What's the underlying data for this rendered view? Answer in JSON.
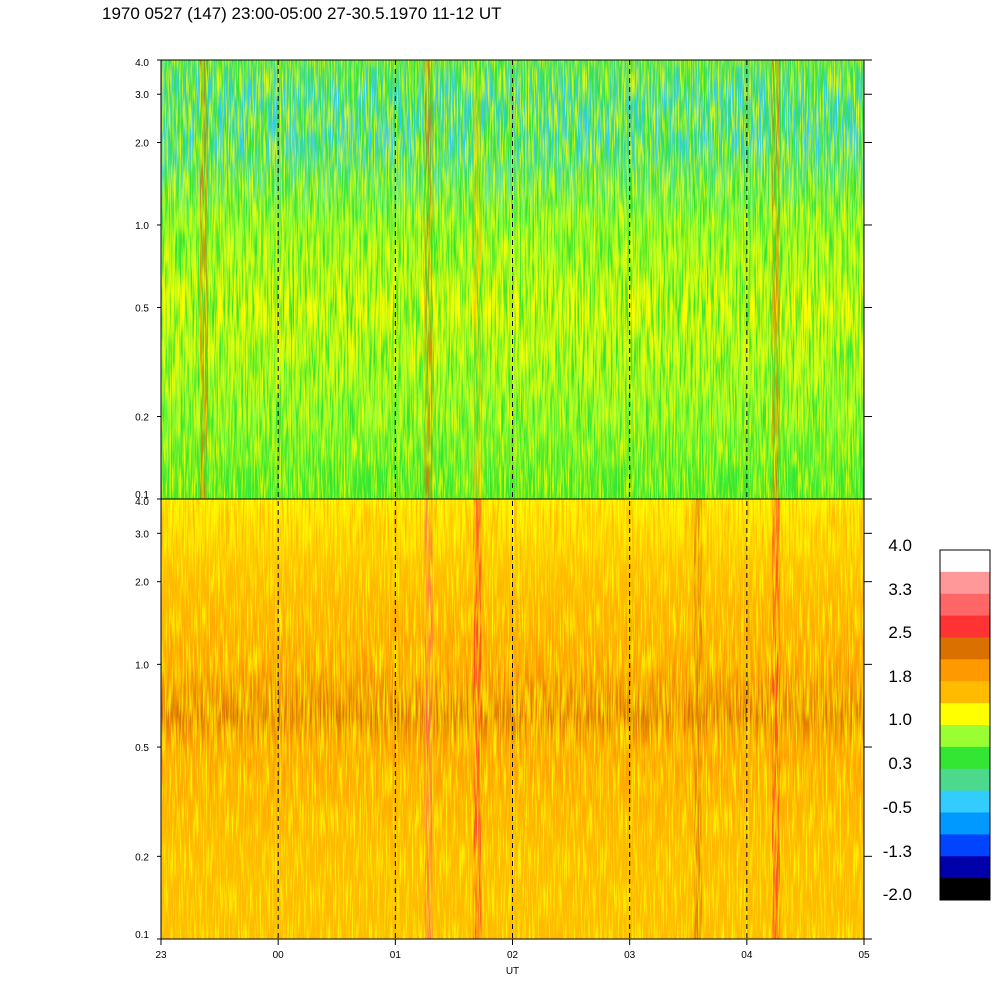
{
  "title": "1970 0527 (147) 23:00-05:00 27-30.5.1970  11-12 UT",
  "chart_data": [
    {
      "type": "heatmap",
      "panel": "upper",
      "x_ticks": [
        "23",
        "00",
        "01",
        "02",
        "03",
        "04",
        "05"
      ],
      "y_ticks": [
        "0.1",
        "0.2",
        "0.5",
        "1.0",
        "2.0",
        "3.0",
        "4.0"
      ],
      "y_scale": "log",
      "ylim": [
        0.1,
        4.0
      ],
      "value_profile": [
        {
          "y": 0.1,
          "value": 0.5
        },
        {
          "y": 0.2,
          "value": 0.8
        },
        {
          "y": 0.5,
          "value": 1.1
        },
        {
          "y": 1.0,
          "value": 1.0
        },
        {
          "y": 2.0,
          "value": -0.4
        },
        {
          "y": 3.0,
          "value": -0.2
        },
        {
          "y": 4.0,
          "value": 0.2
        }
      ],
      "vertical_features": [
        {
          "x": "01:17",
          "value": 2.2
        },
        {
          "x": "01:42",
          "value": 1.6
        },
        {
          "x": "23:22",
          "value": 2.2
        },
        {
          "x": "04:15",
          "value": 2.2
        }
      ]
    },
    {
      "type": "heatmap",
      "panel": "lower",
      "x_ticks": [
        "23",
        "00",
        "01",
        "02",
        "03",
        "04",
        "05"
      ],
      "xlabel": "UT",
      "y_ticks": [
        "0.1",
        "0.2",
        "0.5",
        "1.0",
        "2.0",
        "3.0",
        "4.0"
      ],
      "y_scale": "log",
      "ylim": [
        0.1,
        4.0
      ],
      "value_profile": [
        {
          "y": 0.1,
          "value": 1.5
        },
        {
          "y": 0.2,
          "value": 1.7
        },
        {
          "y": 0.5,
          "value": 1.9
        },
        {
          "y": 0.65,
          "value": 2.3
        },
        {
          "y": 1.0,
          "value": 1.8
        },
        {
          "y": 2.0,
          "value": 1.6
        },
        {
          "y": 4.0,
          "value": 1.2
        }
      ],
      "vertical_features": [
        {
          "x": "01:17",
          "value": 3.0
        },
        {
          "x": "01:42",
          "value": 2.7
        },
        {
          "x": "04:15",
          "value": 2.7
        },
        {
          "x": "03:35",
          "value": 2.4
        }
      ]
    }
  ],
  "colorbar": {
    "labels": [
      "4.0",
      "3.3",
      "2.5",
      "1.8",
      "1.0",
      "0.3",
      "-0.5",
      "-1.3",
      "-2.0"
    ],
    "colors": [
      "#ffffff",
      "#ff9999",
      "#ff6666",
      "#ff3333",
      "#d97000",
      "#ff9900",
      "#ffbb00",
      "#ffff00",
      "#99ff33",
      "#33e633",
      "#4dd98c",
      "#33ccff",
      "#0099ff",
      "#0044ff",
      "#0000aa",
      "#000000"
    ]
  }
}
